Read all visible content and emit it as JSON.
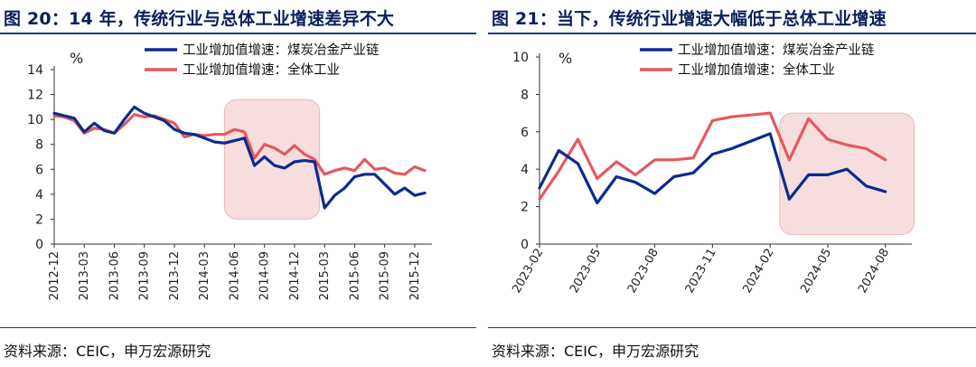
{
  "colors": {
    "series1": "#0d2b8e",
    "series2": "#e5585e",
    "highlight": "#f6dede",
    "highlight_border": "#e9b8b8",
    "title": "#0a1f5c",
    "rule": "#1e3a8a"
  },
  "figures": [
    {
      "title": "图 20：14 年，传统行业与总体工业增速差异不大",
      "source": "资料来源：CEIC，申万宏源研究",
      "unit_label": "%"
    },
    {
      "title": "图 21：当下，传统行业增速大幅低于总体工业增速",
      "source": "资料来源：CEIC，申万宏源研究",
      "unit_label": "%"
    }
  ],
  "chart_data": [
    {
      "type": "line",
      "title": "图 20：14 年，传统行业与总体工业增速差异不大",
      "ylabel": "%",
      "ylim": [
        0,
        14
      ],
      "yticks": [
        0,
        2,
        4,
        6,
        8,
        10,
        12,
        14
      ],
      "xlim": [
        0,
        37
      ],
      "xtick_labels": [
        "2012-12",
        "2013-03",
        "2013-06",
        "2013-09",
        "2013-12",
        "2014-03",
        "2014-06",
        "2014-09",
        "2014-12",
        "2015-03",
        "2015-06",
        "2015-09",
        "2015-12"
      ],
      "legend_position": "top",
      "highlight_range": {
        "x": [
          17,
          26.5
        ],
        "y": [
          2,
          11.6
        ]
      },
      "series": [
        {
          "name": "工业增加值增速：煤炭冶金产业链",
          "color": "#0d2b8e",
          "x": [
            0,
            1,
            2,
            3,
            4,
            5,
            6,
            7,
            8,
            9,
            10,
            11,
            12,
            13,
            14,
            15,
            16,
            17,
            18,
            19,
            20,
            21,
            22,
            23,
            24,
            25,
            26,
            27,
            28,
            29,
            30,
            31,
            32,
            33,
            34,
            35,
            36,
            37
          ],
          "values": [
            10.5,
            10.3,
            10.1,
            9.0,
            9.7,
            9.1,
            8.9,
            10.0,
            11.0,
            10.5,
            10.2,
            9.9,
            9.2,
            8.9,
            8.8,
            8.5,
            8.2,
            8.1,
            8.3,
            8.5,
            6.3,
            7.0,
            6.3,
            6.1,
            6.6,
            6.7,
            6.6,
            2.9,
            3.9,
            4.5,
            5.4,
            5.6,
            5.6,
            4.8,
            4.0,
            4.5,
            3.9,
            4.1
          ]
        },
        {
          "name": "工业增加值增速：全体工业",
          "color": "#e5585e",
          "x": [
            0,
            1,
            2,
            3,
            4,
            5,
            6,
            7,
            8,
            9,
            10,
            11,
            12,
            13,
            14,
            15,
            16,
            17,
            18,
            19,
            20,
            21,
            22,
            23,
            24,
            25,
            26,
            27,
            28,
            29,
            30,
            31,
            32,
            33,
            34,
            35,
            36,
            37
          ],
          "values": [
            10.3,
            10.2,
            9.9,
            8.9,
            9.3,
            9.2,
            8.9,
            9.6,
            10.4,
            10.2,
            10.3,
            10.0,
            9.7,
            8.6,
            8.8,
            8.7,
            8.8,
            8.8,
            9.2,
            9.0,
            6.9,
            8.0,
            7.7,
            7.2,
            7.9,
            7.2,
            6.8,
            5.6,
            5.9,
            6.1,
            5.9,
            6.8,
            6.0,
            6.1,
            5.7,
            5.6,
            6.2,
            5.9
          ]
        }
      ]
    },
    {
      "type": "line",
      "title": "图 21：当下，传统行业增速大幅低于总体工业增速",
      "ylabel": "%",
      "ylim": [
        0,
        10
      ],
      "yticks": [
        0,
        2,
        4,
        6,
        8,
        10
      ],
      "xlim": [
        0,
        19
      ],
      "xtick_labels": [
        "2023-02",
        "2023-05",
        "2023-08",
        "2023-11",
        "2024-02",
        "2024-05",
        "2024-08"
      ],
      "legend_position": "top",
      "highlight_range": {
        "x": [
          12.5,
          19.5
        ],
        "y": [
          0.5,
          7.0
        ]
      },
      "series": [
        {
          "name": "工业增加值增速：煤炭冶金产业链",
          "color": "#0d2b8e",
          "x": [
            0,
            1,
            2,
            3,
            4,
            5,
            6,
            7,
            8,
            9,
            10,
            11,
            12,
            13,
            14,
            15,
            16,
            17,
            18
          ],
          "values": [
            3.0,
            5.0,
            4.3,
            2.2,
            3.6,
            3.3,
            2.7,
            3.6,
            3.8,
            4.8,
            5.1,
            5.5,
            5.9,
            2.4,
            3.7,
            3.7,
            4.0,
            3.1,
            2.8
          ]
        },
        {
          "name": "工业增加值增速：全体工业",
          "color": "#e5585e",
          "x": [
            0,
            1,
            2,
            3,
            4,
            5,
            6,
            7,
            8,
            9,
            10,
            11,
            12,
            13,
            14,
            15,
            16,
            17,
            18
          ],
          "values": [
            2.4,
            3.9,
            5.6,
            3.5,
            4.4,
            3.7,
            4.5,
            4.5,
            4.6,
            6.6,
            6.8,
            6.9,
            7.0,
            4.5,
            6.7,
            5.6,
            5.3,
            5.1,
            4.5
          ]
        }
      ]
    }
  ]
}
